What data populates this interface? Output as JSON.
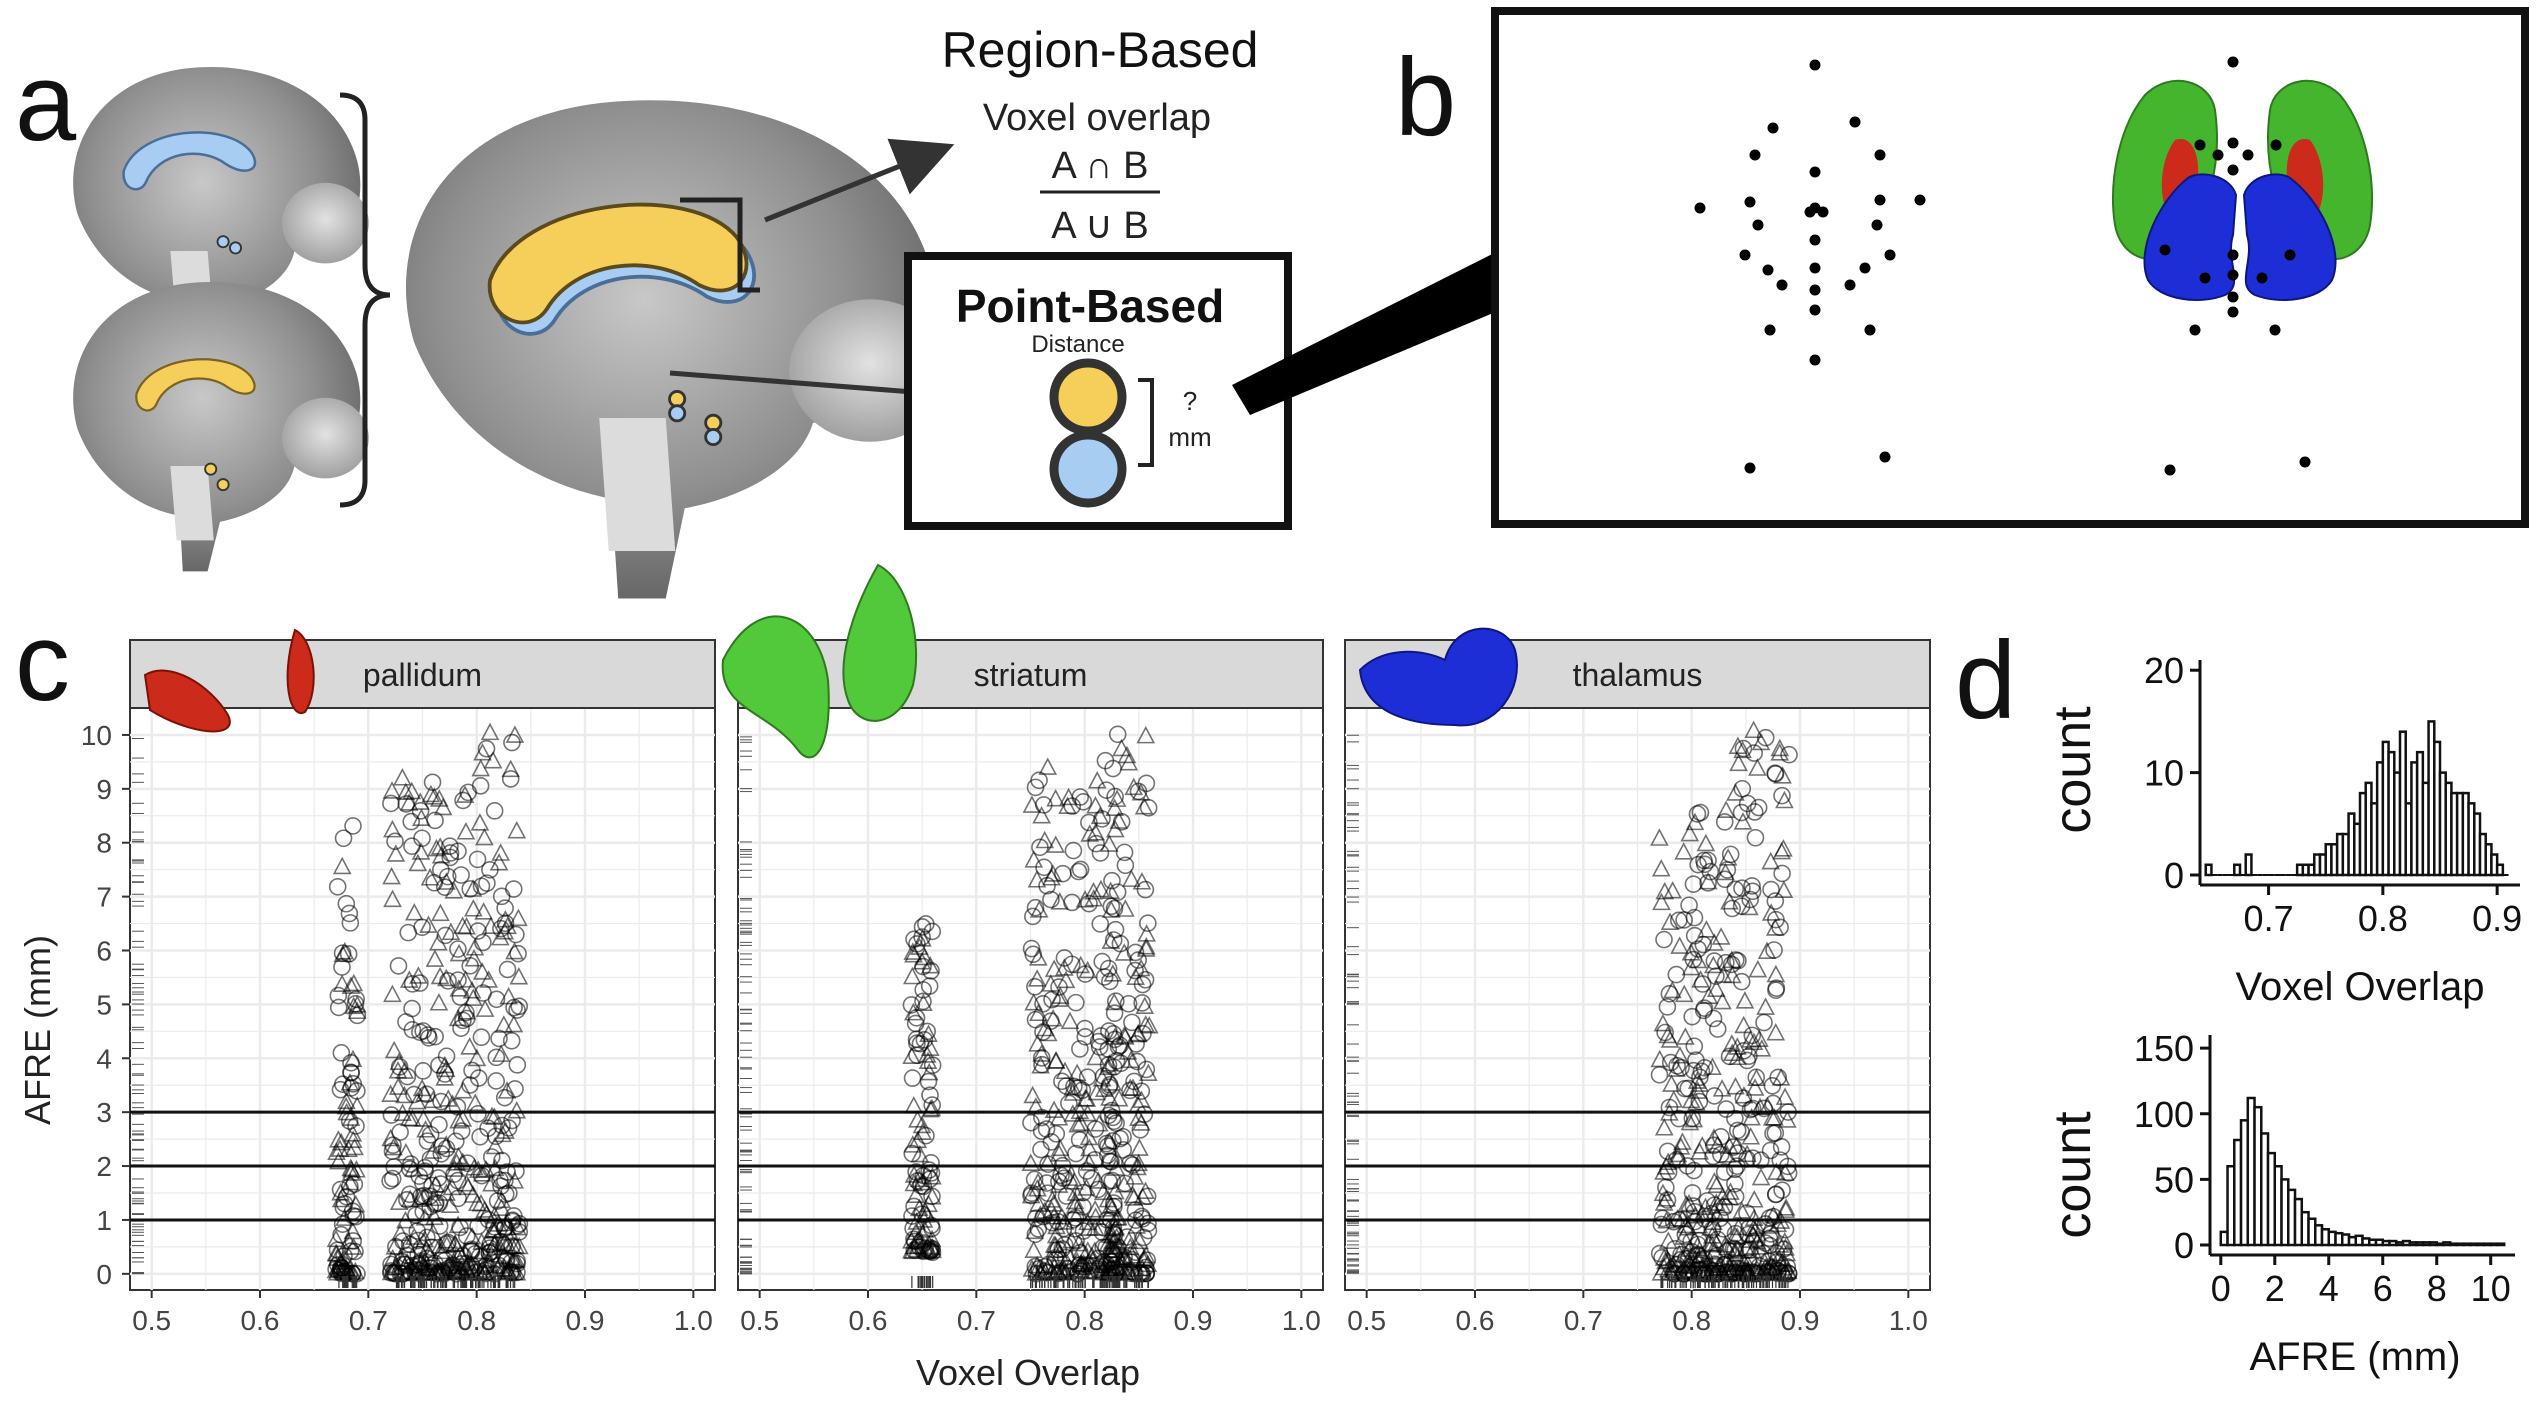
{
  "panel_a": {
    "letter": "a",
    "region_title": "Region-Based",
    "voxel_overlap_label": "Voxel overlap",
    "numerator": "A ∩ B",
    "denominator": "A ∪ B",
    "point_title": "Point-Based",
    "distance_label": "Distance",
    "question_mark": "?",
    "mm_label": "mm"
  },
  "panel_b": {
    "letter": "b"
  },
  "panel_c": {
    "letter": "c",
    "xlabel": "Voxel Overlap",
    "ylabel": "AFRE (mm)",
    "facets": [
      "pallidum",
      "striatum",
      "thalamus"
    ],
    "x_ticks": [
      "0.5",
      "0.6",
      "0.7",
      "0.8",
      "0.9",
      "1.0"
    ],
    "y_ticks": [
      "0",
      "1",
      "2",
      "3",
      "4",
      "5",
      "6",
      "7",
      "8",
      "9",
      "10"
    ]
  },
  "panel_d": {
    "letter": "d",
    "top_xlabel": "Voxel Overlap",
    "top_ylabel": "count",
    "top_x_ticks": [
      "0.7",
      "0.8",
      "0.9"
    ],
    "top_y_ticks": [
      "0",
      "10",
      "20"
    ],
    "bottom_xlabel": "AFRE (mm)",
    "bottom_ylabel": "count",
    "bottom_x_ticks": [
      "0",
      "2",
      "4",
      "6",
      "8",
      "10"
    ],
    "bottom_y_ticks": [
      "0",
      "50",
      "100",
      "150"
    ]
  },
  "colors": {
    "yellow": "#f5cf5a",
    "blue": "#a8cdf3",
    "pallidum": "#cc2a1a",
    "striatum": "#52c93a",
    "thalamus": "#1e2ed6",
    "strip": "#d9d9d9"
  },
  "chart_data": [
    {
      "type": "scatter",
      "title": "",
      "facets": [
        "pallidum",
        "striatum",
        "thalamus"
      ],
      "xlabel": "Voxel Overlap",
      "ylabel": "AFRE (mm)",
      "xlim": [
        0.48,
        1.02
      ],
      "ylim": [
        -0.3,
        10.5
      ],
      "hlines": [
        1,
        2,
        3
      ],
      "marker_shapes": [
        "circle",
        "triangle"
      ],
      "clusters": [
        {
          "facet": "pallidum",
          "x_range": [
            0.67,
            0.69
          ],
          "y_range": [
            0,
            8.4
          ]
        },
        {
          "facet": "pallidum",
          "x_range": [
            0.72,
            0.79
          ],
          "y_range": [
            0,
            9.6
          ]
        },
        {
          "facet": "pallidum",
          "x_range": [
            0.79,
            0.84
          ],
          "y_range": [
            0,
            10.1
          ]
        },
        {
          "facet": "striatum",
          "x_range": [
            0.64,
            0.66
          ],
          "y_range": [
            0.4,
            6.5
          ]
        },
        {
          "facet": "striatum",
          "x_range": [
            0.75,
            0.83
          ],
          "y_range": [
            0,
            9.6
          ]
        },
        {
          "facet": "striatum",
          "x_range": [
            0.82,
            0.86
          ],
          "y_range": [
            0,
            10.1
          ]
        },
        {
          "facet": "thalamus",
          "x_range": [
            0.77,
            0.84
          ],
          "y_range": [
            0,
            8.6
          ]
        },
        {
          "facet": "thalamus",
          "x_range": [
            0.84,
            0.89
          ],
          "y_range": [
            0,
            10.1
          ]
        }
      ]
    },
    {
      "type": "bar",
      "title": "",
      "xlabel": "Voxel Overlap",
      "ylabel": "count",
      "xlim": [
        0.64,
        0.92
      ],
      "ylim": [
        0,
        21
      ],
      "bin_width": 0.005,
      "bin_starts": [
        0.645,
        0.65,
        0.655,
        0.66,
        0.665,
        0.67,
        0.675,
        0.68,
        0.685,
        0.69,
        0.695,
        0.7,
        0.705,
        0.71,
        0.715,
        0.72,
        0.725,
        0.73,
        0.735,
        0.74,
        0.745,
        0.75,
        0.755,
        0.76,
        0.765,
        0.77,
        0.775,
        0.78,
        0.785,
        0.79,
        0.795,
        0.8,
        0.805,
        0.81,
        0.815,
        0.82,
        0.825,
        0.83,
        0.835,
        0.84,
        0.845,
        0.85,
        0.855,
        0.86,
        0.865,
        0.87,
        0.875,
        0.88,
        0.885,
        0.89,
        0.895,
        0.9,
        0.905
      ],
      "values": [
        1,
        0,
        0,
        0,
        0,
        1,
        0,
        2,
        0,
        0,
        0,
        0,
        0,
        0,
        0,
        0,
        1,
        1,
        1,
        2,
        2,
        3,
        3,
        4,
        4,
        6,
        5,
        8,
        9,
        7,
        11,
        13,
        12,
        10,
        14,
        7,
        11,
        12,
        9,
        15,
        13,
        10,
        9,
        8,
        8,
        8,
        7,
        6,
        4,
        3,
        2,
        1,
        0
      ]
    },
    {
      "type": "bar",
      "title": "",
      "xlabel": "AFRE (mm)",
      "ylabel": "count",
      "xlim": [
        -0.4,
        10.9
      ],
      "ylim": [
        0,
        160
      ],
      "bin_width": 0.25,
      "bin_starts": [
        0,
        0.25,
        0.5,
        0.75,
        1.0,
        1.25,
        1.5,
        1.75,
        2.0,
        2.25,
        2.5,
        2.75,
        3.0,
        3.25,
        3.5,
        3.75,
        4.0,
        4.25,
        4.5,
        4.75,
        5.0,
        5.25,
        5.5,
        5.75,
        6.0,
        6.25,
        6.5,
        6.75,
        7.0,
        7.25,
        7.5,
        7.75,
        8.0,
        8.25,
        8.5,
        8.75,
        9.0,
        9.25,
        9.5,
        9.75,
        10.0,
        10.25
      ],
      "values": [
        10,
        60,
        80,
        95,
        112,
        105,
        85,
        70,
        60,
        50,
        42,
        35,
        25,
        20,
        15,
        12,
        10,
        9,
        8,
        6,
        7,
        5,
        4,
        4,
        3,
        3,
        2,
        3,
        2,
        2,
        2,
        2,
        1,
        2,
        1,
        1,
        1,
        1,
        1,
        1,
        1,
        1
      ]
    }
  ]
}
